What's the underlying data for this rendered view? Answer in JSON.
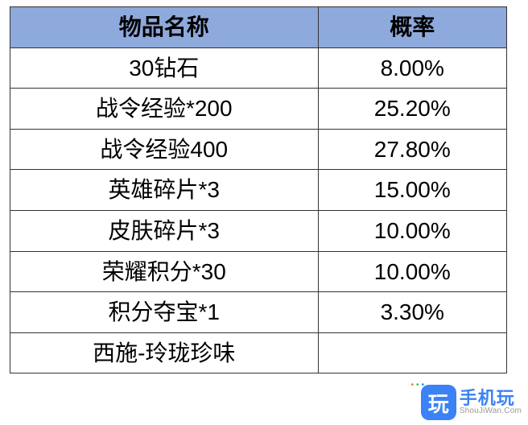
{
  "table": {
    "header_bg": "#8ea9db",
    "border_color": "#333333",
    "header_font_size": 30,
    "cell_font_size": 28,
    "columns": [
      "物品名称",
      "概率"
    ],
    "rows": [
      [
        "30钻石",
        "8.00%"
      ],
      [
        "战令经验*200",
        "25.20%"
      ],
      [
        "战令经验400",
        "27.80%"
      ],
      [
        "英雄碎片*3",
        "15.00%"
      ],
      [
        "皮肤碎片*3",
        "10.00%"
      ],
      [
        "荣耀积分*30",
        "10.00%"
      ],
      [
        "积分夺宝*1",
        "3.30%"
      ],
      [
        "西施-玲珑珍味",
        ""
      ]
    ]
  },
  "watermark": {
    "badge": "玩",
    "main": "手机玩",
    "sub": "ShouJiWan.Com",
    "badge_bg": "#3b82f6",
    "text_color": "#3b82f6"
  }
}
